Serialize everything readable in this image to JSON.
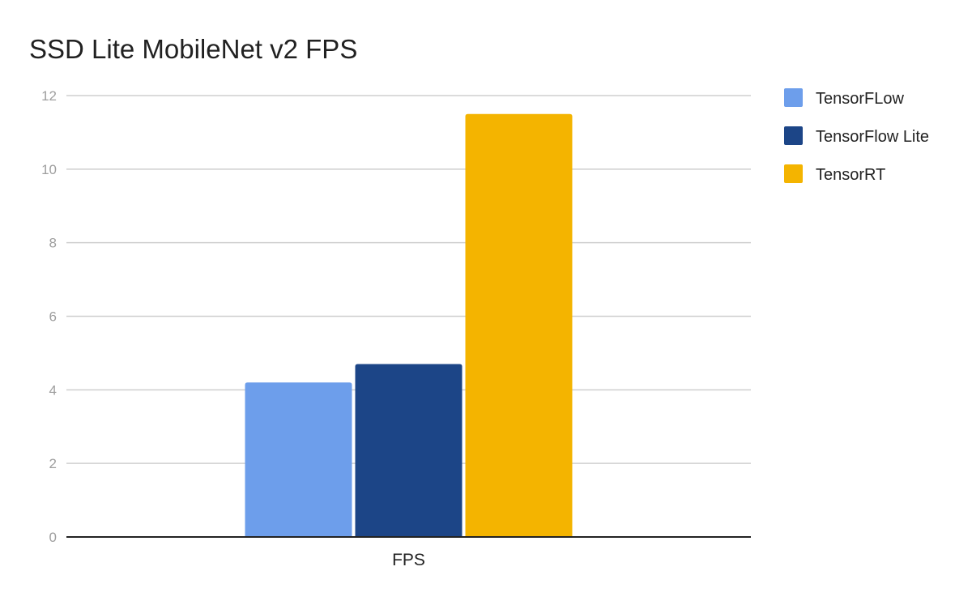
{
  "chart_data": {
    "type": "bar",
    "title": "SSD Lite MobileNet v2 FPS",
    "xlabel": "",
    "ylabel": "",
    "categories": [
      "FPS"
    ],
    "series": [
      {
        "name": "TensorFLow",
        "values": [
          4.2
        ],
        "color": "#6d9eeb"
      },
      {
        "name": "TensorFlow Lite",
        "values": [
          4.7
        ],
        "color": "#1c4587"
      },
      {
        "name": "TensorRT",
        "values": [
          11.5
        ],
        "color": "#f4b400"
      }
    ],
    "ylim": [
      0,
      12
    ],
    "yticks": [
      0,
      2,
      4,
      6,
      8,
      10,
      12
    ],
    "grid": true,
    "legend_position": "right"
  }
}
